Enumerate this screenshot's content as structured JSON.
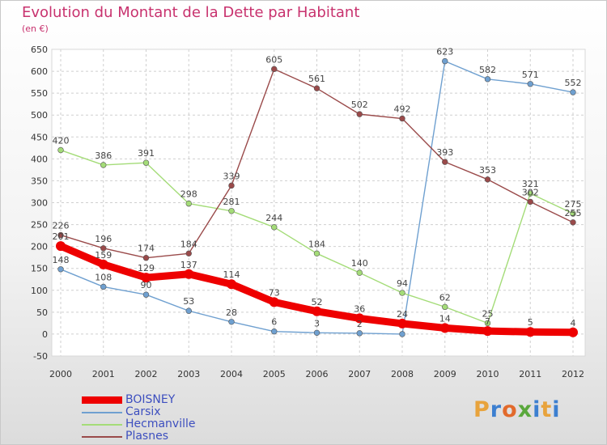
{
  "title": "Evolution du Montant de la Dette par Habitant",
  "unit": "(en €)",
  "logo": {
    "text": "Proxiti",
    "colors": [
      "#e8a33c",
      "#3c7fd0",
      "#e26a2c",
      "#5aa83c",
      "#3c7fd0",
      "#e8a33c",
      "#3c7fd0"
    ]
  },
  "chart_data": {
    "type": "line",
    "title": "Evolution du Montant de la Dette par Habitant",
    "subtitle": "(en €)",
    "x": [
      "2000",
      "2001",
      "2002",
      "2003",
      "2004",
      "2005",
      "2006",
      "2007",
      "2008",
      "2009",
      "2010",
      "2011",
      "2012"
    ],
    "ylim": [
      -50,
      650
    ],
    "yticks": [
      -50,
      0,
      50,
      100,
      150,
      200,
      250,
      300,
      350,
      400,
      450,
      500,
      550,
      600,
      650
    ],
    "grid": true,
    "legend_position": "bottom-left",
    "series": [
      {
        "name": "BOISNEY",
        "color": "#ee0000",
        "values": [
          201,
          159,
          129,
          137,
          114,
          73,
          52,
          36,
          24,
          14,
          7,
          5,
          4
        ],
        "labels": [
          "201",
          "159",
          "129",
          "137",
          "114",
          "73",
          "52",
          "36",
          "24",
          "14",
          "7",
          "5",
          "4"
        ]
      },
      {
        "name": "Carsix",
        "color": "#6fa0d0",
        "values": [
          148,
          108,
          90,
          53,
          28,
          6,
          3,
          2,
          0,
          623,
          582,
          571,
          552
        ],
        "labels": [
          "148",
          "108",
          "90",
          "53",
          "28",
          "6",
          "3",
          "2",
          "",
          "623",
          "582",
          "571",
          "552"
        ]
      },
      {
        "name": "Hecmanville",
        "color": "#a4dc78",
        "values": [
          420,
          386,
          391,
          298,
          281,
          244,
          184,
          140,
          94,
          62,
          25,
          321,
          275
        ],
        "labels": [
          "420",
          "386",
          "391",
          "298",
          "281",
          "244",
          "184",
          "140",
          "94",
          "62",
          "25",
          "321",
          "275"
        ]
      },
      {
        "name": "Plasnes",
        "color": "#9a4a4a",
        "values": [
          226,
          196,
          174,
          184,
          339,
          605,
          561,
          502,
          492,
          393,
          353,
          302,
          255
        ],
        "labels": [
          "226",
          "196",
          "174",
          "184",
          "339",
          "605",
          "561",
          "502",
          "492",
          "393",
          "353",
          "302",
          "255"
        ]
      }
    ]
  }
}
